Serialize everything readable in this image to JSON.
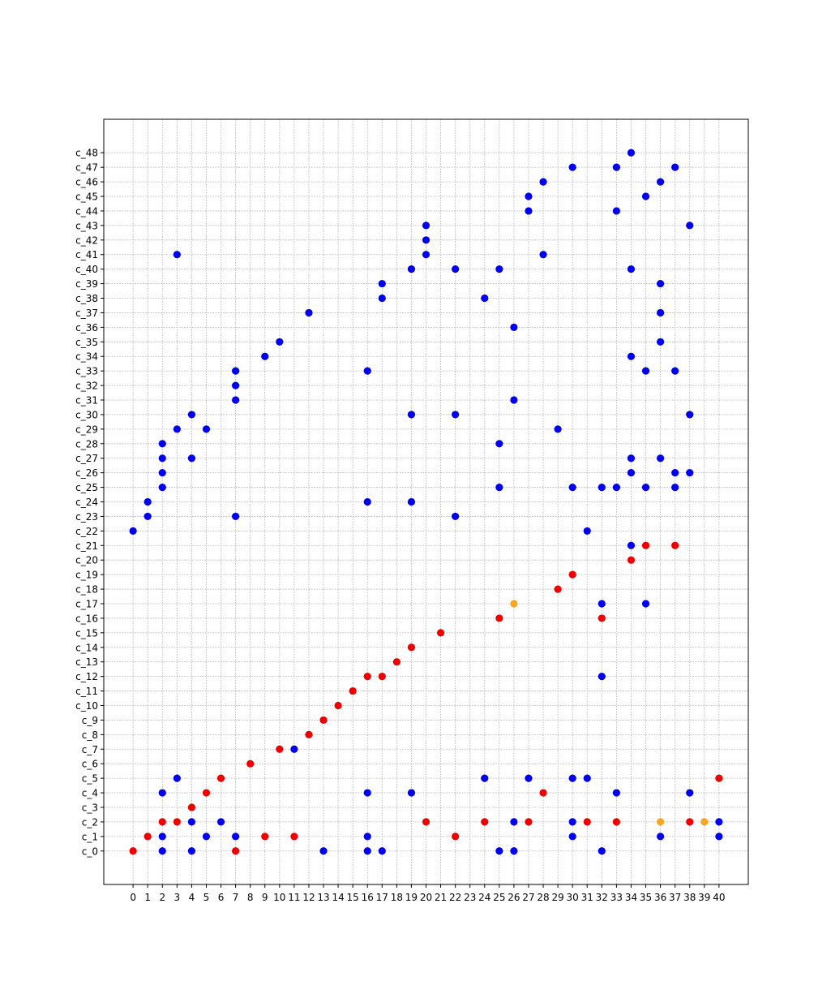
{
  "chart_data": {
    "type": "scatter",
    "title": "",
    "xlabel": "",
    "ylabel": "",
    "grid": true,
    "xlim": [
      -2,
      42
    ],
    "ylim": [
      -2.3,
      50.3
    ],
    "colors": {
      "blue": "#0000ee",
      "red": "#ee0000",
      "orange": "#f5a623"
    },
    "x_ticks": [
      "0",
      "1",
      "2",
      "3",
      "4",
      "5",
      "6",
      "7",
      "8",
      "9",
      "10",
      "11",
      "12",
      "13",
      "14",
      "15",
      "16",
      "17",
      "18",
      "19",
      "20",
      "21",
      "22",
      "23",
      "24",
      "25",
      "26",
      "27",
      "28",
      "29",
      "30",
      "31",
      "32",
      "33",
      "34",
      "35",
      "36",
      "37",
      "38",
      "39",
      "40"
    ],
    "y_categories": [
      "c_0",
      "c_1",
      "c_2",
      "c_3",
      "c_4",
      "c_5",
      "c_6",
      "c_7",
      "c_8",
      "c_9",
      "c_10",
      "c_11",
      "c_12",
      "c_13",
      "c_14",
      "c_15",
      "c_16",
      "c_17",
      "c_18",
      "c_19",
      "c_20",
      "c_21",
      "c_22",
      "c_23",
      "c_24",
      "c_25",
      "c_26",
      "c_27",
      "c_28",
      "c_29",
      "c_30",
      "c_31",
      "c_32",
      "c_33",
      "c_34",
      "c_35",
      "c_36",
      "c_37",
      "c_38",
      "c_39",
      "c_40",
      "c_41",
      "c_42",
      "c_43",
      "c_44",
      "c_45",
      "c_46",
      "c_47",
      "c_48"
    ],
    "series": [
      {
        "color": "red",
        "points": [
          [
            0,
            "c_0"
          ],
          [
            1,
            "c_1"
          ],
          [
            2,
            "c_2"
          ],
          [
            3,
            "c_2"
          ],
          [
            4,
            "c_3"
          ],
          [
            5,
            "c_4"
          ],
          [
            6,
            "c_5"
          ],
          [
            7,
            "c_0"
          ],
          [
            8,
            "c_6"
          ],
          [
            9,
            "c_1"
          ],
          [
            10,
            "c_7"
          ],
          [
            11,
            "c_1"
          ],
          [
            12,
            "c_8"
          ],
          [
            13,
            "c_9"
          ],
          [
            14,
            "c_10"
          ],
          [
            15,
            "c_11"
          ],
          [
            16,
            "c_12"
          ],
          [
            17,
            "c_12"
          ],
          [
            18,
            "c_13"
          ],
          [
            19,
            "c_14"
          ],
          [
            20,
            "c_2"
          ],
          [
            21,
            "c_15"
          ],
          [
            22,
            "c_1"
          ],
          [
            24,
            "c_2"
          ],
          [
            25,
            "c_16"
          ],
          [
            27,
            "c_2"
          ],
          [
            28,
            "c_4"
          ],
          [
            29,
            "c_18"
          ],
          [
            30,
            "c_19"
          ],
          [
            31,
            "c_2"
          ],
          [
            32,
            "c_16"
          ],
          [
            33,
            "c_2"
          ],
          [
            34,
            "c_20"
          ],
          [
            35,
            "c_21"
          ],
          [
            37,
            "c_21"
          ],
          [
            38,
            "c_2"
          ],
          [
            40,
            "c_5"
          ]
        ]
      },
      {
        "color": "blue",
        "points": [
          [
            0,
            "c_22"
          ],
          [
            1,
            "c_23"
          ],
          [
            1,
            "c_24"
          ],
          [
            2,
            "c_0"
          ],
          [
            2,
            "c_1"
          ],
          [
            2,
            "c_4"
          ],
          [
            2,
            "c_25"
          ],
          [
            2,
            "c_26"
          ],
          [
            2,
            "c_27"
          ],
          [
            2,
            "c_28"
          ],
          [
            3,
            "c_5"
          ],
          [
            3,
            "c_29"
          ],
          [
            3,
            "c_41"
          ],
          [
            4,
            "c_0"
          ],
          [
            4,
            "c_2"
          ],
          [
            4,
            "c_27"
          ],
          [
            4,
            "c_30"
          ],
          [
            5,
            "c_1"
          ],
          [
            5,
            "c_29"
          ],
          [
            6,
            "c_2"
          ],
          [
            7,
            "c_1"
          ],
          [
            7,
            "c_23"
          ],
          [
            7,
            "c_31"
          ],
          [
            7,
            "c_32"
          ],
          [
            7,
            "c_33"
          ],
          [
            9,
            "c_34"
          ],
          [
            10,
            "c_35"
          ],
          [
            11,
            "c_7"
          ],
          [
            12,
            "c_37"
          ],
          [
            13,
            "c_0"
          ],
          [
            16,
            "c_0"
          ],
          [
            16,
            "c_1"
          ],
          [
            16,
            "c_4"
          ],
          [
            16,
            "c_24"
          ],
          [
            16,
            "c_33"
          ],
          [
            17,
            "c_0"
          ],
          [
            17,
            "c_38"
          ],
          [
            17,
            "c_39"
          ],
          [
            19,
            "c_4"
          ],
          [
            19,
            "c_24"
          ],
          [
            19,
            "c_30"
          ],
          [
            19,
            "c_40"
          ],
          [
            20,
            "c_41"
          ],
          [
            20,
            "c_42"
          ],
          [
            20,
            "c_43"
          ],
          [
            22,
            "c_23"
          ],
          [
            22,
            "c_30"
          ],
          [
            22,
            "c_40"
          ],
          [
            24,
            "c_5"
          ],
          [
            24,
            "c_38"
          ],
          [
            25,
            "c_0"
          ],
          [
            25,
            "c_25"
          ],
          [
            25,
            "c_28"
          ],
          [
            25,
            "c_40"
          ],
          [
            26,
            "c_0"
          ],
          [
            26,
            "c_2"
          ],
          [
            26,
            "c_31"
          ],
          [
            26,
            "c_36"
          ],
          [
            27,
            "c_5"
          ],
          [
            27,
            "c_44"
          ],
          [
            27,
            "c_45"
          ],
          [
            28,
            "c_41"
          ],
          [
            28,
            "c_46"
          ],
          [
            29,
            "c_29"
          ],
          [
            30,
            "c_1"
          ],
          [
            30,
            "c_2"
          ],
          [
            30,
            "c_5"
          ],
          [
            30,
            "c_25"
          ],
          [
            30,
            "c_47"
          ],
          [
            31,
            "c_5"
          ],
          [
            31,
            "c_22"
          ],
          [
            32,
            "c_0"
          ],
          [
            32,
            "c_12"
          ],
          [
            32,
            "c_17"
          ],
          [
            32,
            "c_25"
          ],
          [
            33,
            "c_4"
          ],
          [
            33,
            "c_25"
          ],
          [
            33,
            "c_44"
          ],
          [
            33,
            "c_47"
          ],
          [
            34,
            "c_21"
          ],
          [
            34,
            "c_26"
          ],
          [
            34,
            "c_27"
          ],
          [
            34,
            "c_34"
          ],
          [
            34,
            "c_40"
          ],
          [
            34,
            "c_48"
          ],
          [
            35,
            "c_17"
          ],
          [
            35,
            "c_25"
          ],
          [
            35,
            "c_33"
          ],
          [
            35,
            "c_45"
          ],
          [
            36,
            "c_1"
          ],
          [
            36,
            "c_27"
          ],
          [
            36,
            "c_35"
          ],
          [
            36,
            "c_37"
          ],
          [
            36,
            "c_39"
          ],
          [
            36,
            "c_46"
          ],
          [
            37,
            "c_25"
          ],
          [
            37,
            "c_26"
          ],
          [
            37,
            "c_33"
          ],
          [
            37,
            "c_47"
          ],
          [
            38,
            "c_4"
          ],
          [
            38,
            "c_26"
          ],
          [
            38,
            "c_30"
          ],
          [
            38,
            "c_43"
          ],
          [
            40,
            "c_1"
          ],
          [
            40,
            "c_2"
          ]
        ]
      },
      {
        "color": "orange",
        "points": [
          [
            26,
            "c_17"
          ],
          [
            36,
            "c_2"
          ],
          [
            39,
            "c_2"
          ]
        ]
      }
    ]
  }
}
